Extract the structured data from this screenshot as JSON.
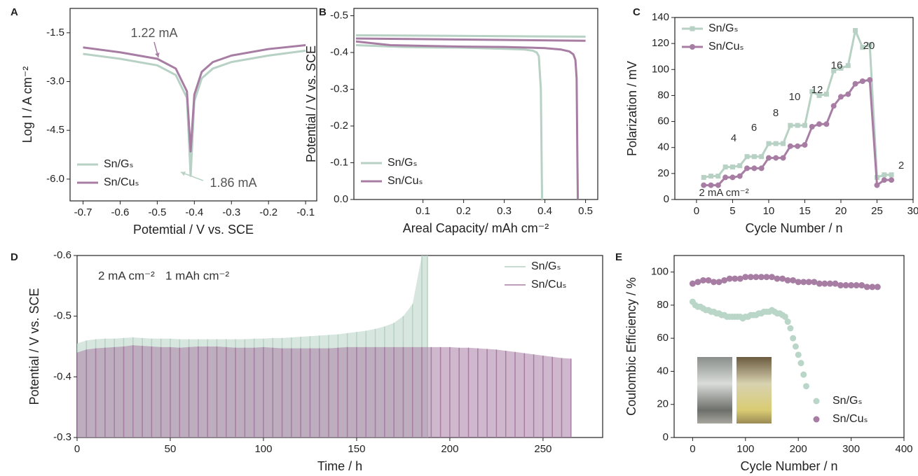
{
  "chart_data": [
    {
      "type": "line",
      "panel": "A",
      "xlabel": "Potemtial / V vs. SCE",
      "ylabel": "Log I / A cm⁻²",
      "x": [
        -0.7,
        -0.6,
        -0.5,
        -0.45,
        -0.42,
        -0.41,
        -0.4,
        -0.38,
        -0.35,
        -0.3,
        -0.2,
        -0.1
      ],
      "series": [
        {
          "name": "Sn/Gₛ",
          "color": "#b7d1c4",
          "values": [
            -2.15,
            -2.3,
            -2.5,
            -2.8,
            -3.5,
            -5.9,
            -3.6,
            -2.9,
            -2.6,
            -2.4,
            -2.2,
            -2.05
          ]
        },
        {
          "name": "Sn/Cuₛ",
          "color": "#a77da4",
          "values": [
            -1.95,
            -2.1,
            -2.3,
            -2.6,
            -3.3,
            -5.15,
            -3.4,
            -2.7,
            -2.4,
            -2.2,
            -2.0,
            -1.88
          ]
        }
      ],
      "xlim": [
        -0.735,
        -0.07
      ],
      "xticks": [
        -0.7,
        -0.6,
        -0.5,
        -0.4,
        -0.3,
        -0.2,
        -0.1
      ],
      "ylim": [
        -6.67,
        -0.75
      ],
      "yticks": [
        {
          "value": -6,
          "label": "-6.0"
        },
        -4.5,
        {
          "value": -3,
          "label": "-3.0"
        },
        -1.5
      ],
      "legend": "lower left",
      "annotations": [
        "1.22 mA",
        "1.86 mA"
      ]
    },
    {
      "type": "line",
      "panel": "B",
      "xlabel": "Areal Capacity/ mAh cm⁻²",
      "ylabel": "Potential / V vs. SCE",
      "series": [
        {
          "color": "#b7d1c4",
          "x": [
            -0.065,
            0.5
          ],
          "values": [
            -0.447,
            -0.443
          ]
        },
        {
          "name": "Sn/Gₛ",
          "color": "#b7d1c4",
          "x": [
            -0.065,
            0.05,
            0.1,
            0.2,
            0.3,
            0.35,
            0.37,
            0.38,
            0.385,
            0.39,
            0.392,
            0.393
          ],
          "values": [
            -0.42,
            -0.415,
            -0.414,
            -0.413,
            -0.41,
            -0.408,
            -0.405,
            -0.4,
            -0.39,
            -0.3,
            -0.1,
            0.0
          ]
        },
        {
          "color": "#a77da4",
          "x": [
            -0.065,
            0.5
          ],
          "values": [
            -0.438,
            -0.432
          ]
        },
        {
          "name": "Sn/Cuₛ",
          "color": "#a77da4",
          "x": [
            -0.065,
            0.02,
            0.1,
            0.2,
            0.3,
            0.4,
            0.44,
            0.46,
            0.47,
            0.475,
            0.478,
            0.48,
            0.481
          ],
          "values": [
            -0.43,
            -0.42,
            -0.418,
            -0.416,
            -0.415,
            -0.412,
            -0.408,
            -0.403,
            -0.395,
            -0.38,
            -0.33,
            -0.1,
            0.0
          ]
        }
      ],
      "xlim": [
        -0.07,
        0.53
      ],
      "xticks": [
        0.1,
        0.2,
        0.3,
        0.4,
        0.5
      ],
      "ylim": [
        0,
        -0.52
      ],
      "yticks": [
        {
          "value": 0,
          "label": "0.0"
        },
        -0.1,
        -0.2,
        -0.3,
        -0.4,
        -0.5
      ],
      "legend": "lower left"
    },
    {
      "type": "line",
      "panel": "C",
      "xlabel": "Cycle Number / n",
      "ylabel": "Polarization / mV",
      "x": [
        1,
        2,
        3,
        4,
        5,
        6,
        7,
        8,
        9,
        10,
        11,
        12,
        13,
        14,
        15,
        16,
        17,
        18,
        19,
        20,
        21,
        22,
        23,
        24,
        25,
        26,
        27
      ],
      "series": [
        {
          "name": "Sn/Gₛ",
          "color": "#b7d1c4",
          "marker": "square",
          "values": [
            17,
            18,
            18,
            25,
            25,
            26,
            33,
            33,
            33,
            43,
            43,
            43,
            57,
            57,
            57,
            83,
            80,
            81,
            99,
            101,
            103,
            130,
            117,
            119,
            17,
            19,
            19
          ]
        },
        {
          "name": "Sn/Cuₛ",
          "color": "#a77da4",
          "marker": "circle",
          "values": [
            11,
            11,
            11,
            17,
            17,
            18,
            24,
            24,
            24,
            32,
            32,
            32,
            41,
            41,
            42,
            56,
            58,
            58,
            72,
            79,
            81,
            89,
            91,
            92,
            11,
            15,
            15
          ]
        }
      ],
      "xlim": [
        -3,
        30
      ],
      "xticks": [
        0,
        5,
        10,
        15,
        20,
        25,
        30
      ],
      "ylim": [
        0,
        140
      ],
      "yticks": [
        0,
        20,
        40,
        60,
        80,
        100,
        120,
        140
      ],
      "legend": "upper left",
      "annotations": [
        "2 mA cm⁻²",
        "4",
        "6",
        "8",
        "10",
        "12",
        "16",
        "20",
        "2"
      ]
    },
    {
      "type": "spikes",
      "panel": "D",
      "xlabel": "Time / h",
      "ylabel": "Potential / V vs. SCE",
      "series": [
        {
          "name": "Sn/Gₛ",
          "color": "#b7d1c4",
          "x": [
            0,
            5,
            10,
            15,
            20,
            25,
            30,
            35,
            40,
            45,
            50,
            55,
            60,
            65,
            70,
            75,
            80,
            85,
            90,
            95,
            100,
            105,
            110,
            115,
            120,
            125,
            130,
            135,
            140,
            145,
            150,
            155,
            160,
            165,
            170,
            175,
            180,
            185,
            188
          ],
          "values": [
            -0.455,
            -0.46,
            -0.462,
            -0.463,
            -0.463,
            -0.464,
            -0.465,
            -0.464,
            -0.463,
            -0.463,
            -0.463,
            -0.462,
            -0.462,
            -0.462,
            -0.462,
            -0.462,
            -0.462,
            -0.462,
            -0.462,
            -0.463,
            -0.463,
            -0.464,
            -0.464,
            -0.465,
            -0.466,
            -0.467,
            -0.468,
            -0.469,
            -0.47,
            -0.472,
            -0.474,
            -0.476,
            -0.479,
            -0.483,
            -0.489,
            -0.5,
            -0.52,
            -0.6,
            -0.6
          ]
        },
        {
          "name": "Sn/Cuₛ",
          "color": "#a77da4",
          "x": [
            0,
            5,
            10,
            15,
            20,
            25,
            30,
            35,
            40,
            45,
            50,
            55,
            60,
            65,
            70,
            75,
            80,
            85,
            90,
            95,
            100,
            105,
            110,
            115,
            120,
            125,
            130,
            135,
            140,
            145,
            150,
            155,
            160,
            165,
            170,
            175,
            180,
            185,
            190,
            195,
            200,
            205,
            210,
            215,
            220,
            225,
            230,
            235,
            240,
            245,
            250,
            255,
            260,
            265
          ],
          "values": [
            -0.44,
            -0.445,
            -0.447,
            -0.448,
            -0.449,
            -0.45,
            -0.452,
            -0.451,
            -0.45,
            -0.449,
            -0.449,
            -0.448,
            -0.449,
            -0.45,
            -0.45,
            -0.45,
            -0.449,
            -0.448,
            -0.448,
            -0.448,
            -0.449,
            -0.448,
            -0.447,
            -0.447,
            -0.447,
            -0.447,
            -0.447,
            -0.447,
            -0.448,
            -0.449,
            -0.449,
            -0.449,
            -0.449,
            -0.449,
            -0.449,
            -0.449,
            -0.449,
            -0.449,
            -0.449,
            -0.449,
            -0.449,
            -0.448,
            -0.448,
            -0.447,
            -0.446,
            -0.445,
            -0.443,
            -0.441,
            -0.439,
            -0.437,
            -0.435,
            -0.433,
            -0.431,
            -0.43
          ]
        }
      ],
      "xlim": [
        0,
        282
      ],
      "xticks": [
        0,
        50,
        100,
        150,
        200,
        250
      ],
      "ylim": [
        -0.3,
        -0.6
      ],
      "yticks": [
        -0.3,
        -0.4,
        -0.5,
        -0.6
      ],
      "legend": "upper right",
      "annotations": [
        "2 mA cm⁻²",
        "1 mAh cm⁻²"
      ]
    },
    {
      "type": "scatter",
      "panel": "E",
      "xlabel": "Cycle Number / n",
      "ylabel": "Coulombic Efficiency / %",
      "series": [
        {
          "name": "Sn/Gₛ",
          "color": "#b9d6c8",
          "x": [
            0,
            5,
            10,
            15,
            20,
            25,
            30,
            35,
            40,
            45,
            50,
            55,
            60,
            65,
            70,
            75,
            80,
            85,
            90,
            95,
            100,
            105,
            110,
            115,
            120,
            125,
            130,
            135,
            140,
            145,
            150,
            155,
            160,
            165,
            170,
            175,
            180,
            185,
            190,
            195,
            200,
            205,
            210,
            215
          ],
          "values": [
            82,
            80,
            79,
            79,
            78,
            77,
            77,
            76,
            76,
            75,
            75,
            74,
            74,
            73,
            73,
            73,
            73,
            73,
            73,
            72,
            73,
            73,
            74,
            74,
            74,
            75,
            75,
            76,
            76,
            76,
            77,
            76,
            75,
            75,
            74,
            73,
            70,
            66,
            60,
            55,
            50,
            45,
            38,
            31
          ]
        },
        {
          "name": "Sn/Cuₛ",
          "color": "#a77da4",
          "x": [
            0,
            10,
            20,
            30,
            40,
            50,
            60,
            70,
            80,
            90,
            100,
            110,
            120,
            130,
            140,
            150,
            160,
            170,
            180,
            190,
            200,
            210,
            220,
            230,
            240,
            250,
            260,
            270,
            280,
            290,
            300,
            310,
            320,
            330,
            340,
            350
          ],
          "values": [
            93,
            94,
            95,
            95,
            94,
            94,
            95,
            96,
            96,
            96,
            97,
            97,
            97,
            97,
            97,
            97,
            96,
            96,
            95,
            95,
            94,
            94,
            94,
            94,
            93,
            93,
            93,
            93,
            92,
            92,
            92,
            92,
            92,
            91,
            91,
            91
          ]
        }
      ],
      "xlim": [
        -35,
        400
      ],
      "xticks": [
        0,
        100,
        200,
        300,
        400
      ],
      "ylim": [
        0,
        110
      ],
      "yticks": [
        0,
        20,
        40,
        60,
        80,
        100
      ],
      "legend": "lower right"
    }
  ]
}
